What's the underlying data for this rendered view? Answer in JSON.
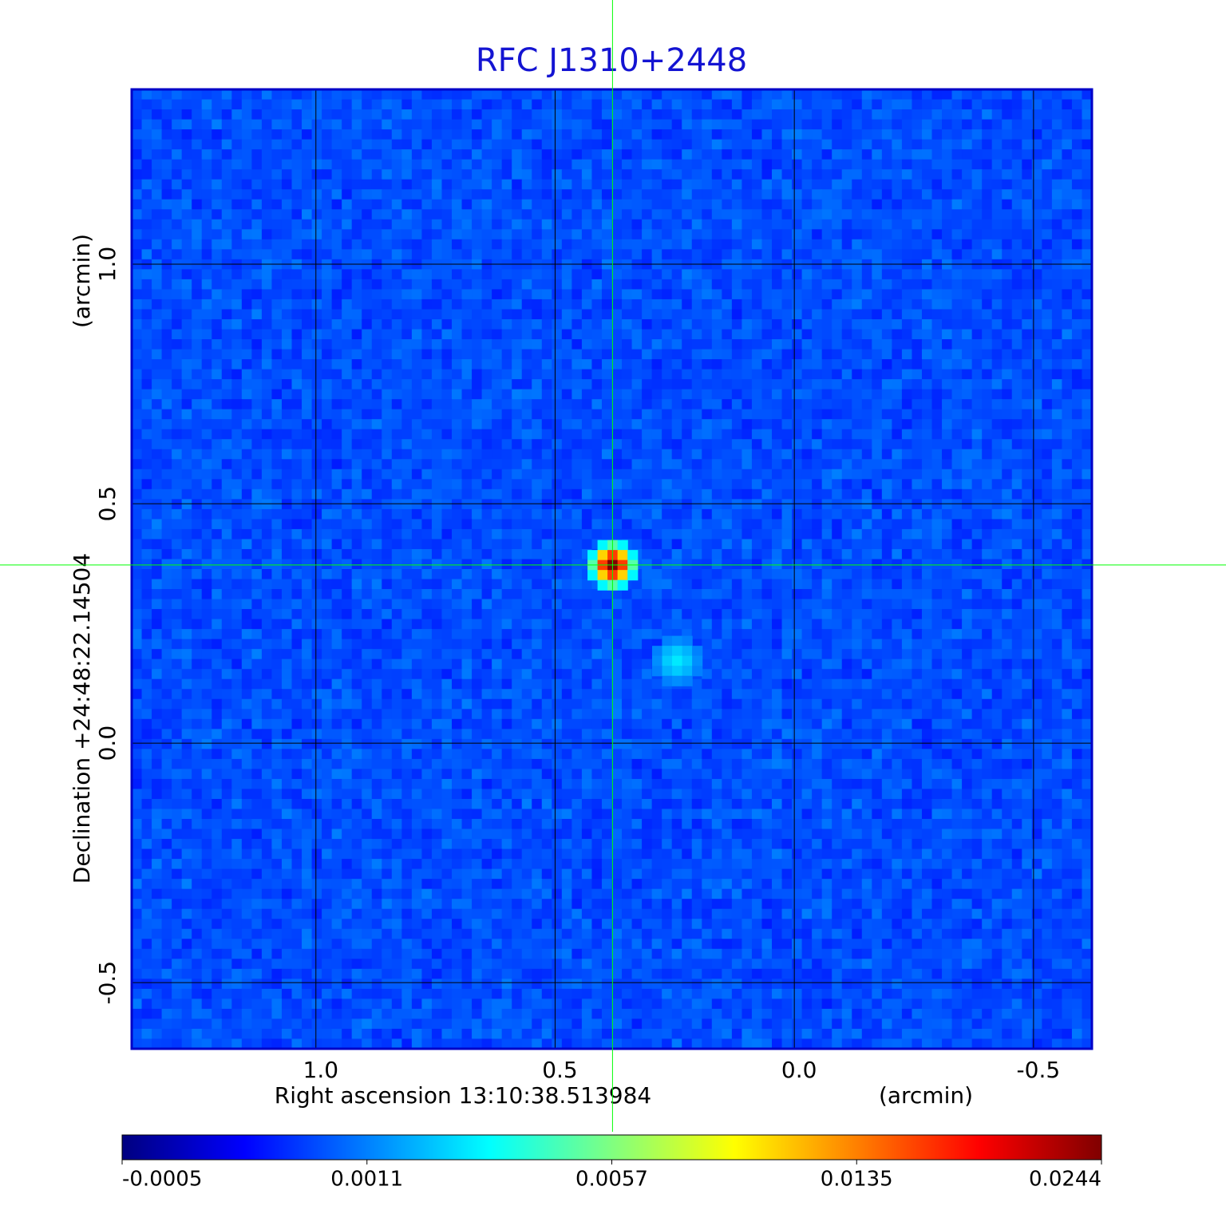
{
  "chart_data": {
    "type": "image",
    "title": "RFC J1310+2448",
    "xlabel": "Right ascension  13:10:38.513984",
    "xunit": "(arcmin)",
    "ylabel": "Declination  +24:48:22.14504",
    "yunit": "(arcmin)",
    "xlim": [
      1.385,
      -0.622
    ],
    "ylim": [
      -0.638,
      1.365
    ],
    "xticks": [
      {
        "value": 1,
        "label": "1.0"
      },
      0.5,
      {
        "value": 0,
        "label": "0.0"
      },
      -0.5
    ],
    "yticks": [
      -0.5,
      {
        "value": 0,
        "label": "0.0"
      },
      0.5,
      {
        "value": 1,
        "label": "1.0"
      }
    ],
    "grid": true,
    "crosshair": {
      "x": 0.38,
      "y": 0.372,
      "color": "#00ff00"
    },
    "sources": [
      {
        "x": 0.38,
        "y": 0.372,
        "peak": 0.0244
      },
      {
        "x": 0.245,
        "y": 0.172,
        "peak": 0.003
      }
    ],
    "colormap": "jet",
    "colorbar_ticks": [
      -0.0005,
      0.0011,
      0.0057,
      0.0135,
      0.0244
    ]
  }
}
